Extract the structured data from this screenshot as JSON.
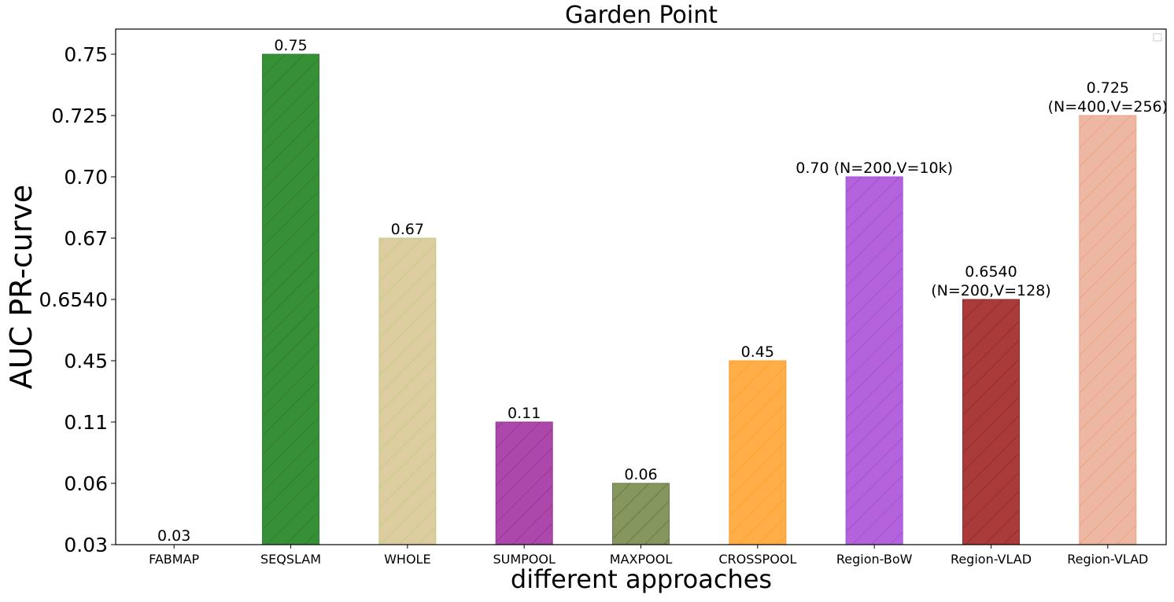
{
  "chart_data": {
    "type": "bar",
    "title": "Garden Point",
    "xlabel": "different approaches",
    "ylabel": "AUC PR-curve",
    "categories": [
      "FABMAP",
      "SEQSLAM",
      "WHOLE",
      "SUMPOOL",
      "MAXPOOL",
      "CROSSPOOL",
      "Region-BoW",
      "Region-VLAD",
      "Region-VLAD"
    ],
    "values": [
      0.03,
      0.75,
      0.67,
      0.11,
      0.06,
      0.45,
      0.7,
      0.654,
      0.725
    ],
    "data_labels": [
      [
        "0.03"
      ],
      [
        "0.75"
      ],
      [
        "0.67"
      ],
      [
        "0.11"
      ],
      [
        "0.06"
      ],
      [
        "0.45"
      ],
      [
        "0.70 (N=200,V=10k)"
      ],
      [
        "0.6540",
        "(N=200,V=128)"
      ],
      [
        "0.725",
        "(N=400,V=256)"
      ]
    ],
    "ytick_labels": [
      "0.03",
      "0.06",
      "0.11",
      "0.45",
      "0.6540",
      "0.67",
      "0.70",
      "0.725",
      "0.75"
    ],
    "y_axis_note": "ticks evenly spaced (categorical scale of the listed values)",
    "colors": [
      "#1f77b4",
      "#0b7a0b",
      "#d6c18a",
      "#9a1f9a",
      "#6b7f3c",
      "#ff9d1f",
      "#a642d6",
      "#990f0f",
      "#e9a88f"
    ],
    "hatch_colors": [
      "#1f77b4",
      "#0b5d0b",
      "#b5c46a",
      "#7a0f7a",
      "#4a5d22",
      "#ff8c00",
      "#8a2ad0",
      "#7a0000",
      "#f08a6a"
    ],
    "hatch": "diagonal",
    "legend": "top-right (empty)",
    "grid": false
  }
}
